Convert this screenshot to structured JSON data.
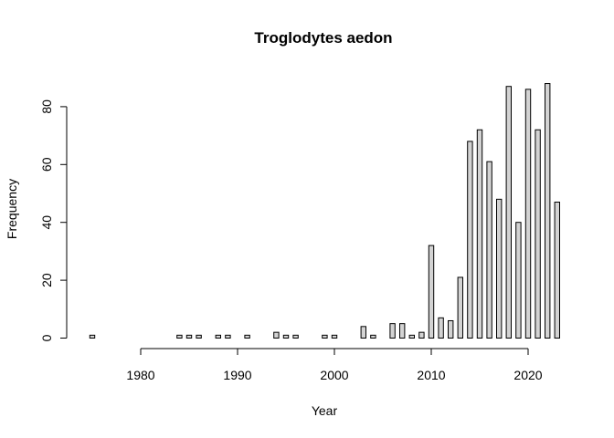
{
  "chart_data": {
    "type": "bar",
    "title": "Troglodytes aedon",
    "xlabel": "Year",
    "ylabel": "Frequency",
    "x": [
      1975,
      1976,
      1977,
      1978,
      1979,
      1980,
      1981,
      1982,
      1983,
      1984,
      1985,
      1986,
      1987,
      1988,
      1989,
      1990,
      1991,
      1992,
      1993,
      1994,
      1995,
      1996,
      1997,
      1998,
      1999,
      2000,
      2001,
      2002,
      2003,
      2004,
      2005,
      2006,
      2007,
      2008,
      2009,
      2010,
      2011,
      2012,
      2013,
      2014,
      2015,
      2016,
      2017,
      2018,
      2019,
      2020,
      2021,
      2022,
      2023
    ],
    "values": [
      1,
      0,
      0,
      0,
      0,
      0,
      0,
      0,
      0,
      1,
      1,
      1,
      0,
      1,
      1,
      0,
      1,
      0,
      0,
      2,
      1,
      1,
      0,
      0,
      1,
      1,
      0,
      0,
      4,
      1,
      0,
      5,
      5,
      1,
      2,
      32,
      7,
      6,
      21,
      68,
      72,
      61,
      48,
      87,
      40,
      86,
      72,
      88,
      47
    ],
    "xlim": [
      1975,
      2023
    ],
    "ylim": [
      0,
      88
    ],
    "xticks": [
      "1980",
      "1990",
      "2000",
      "2010",
      "2020"
    ],
    "yticks": [
      "0",
      "20",
      "40",
      "60",
      "80"
    ],
    "bar_fill": "#d3d3d3",
    "bar_stroke": "#000000",
    "grid": false,
    "legend": "none"
  }
}
